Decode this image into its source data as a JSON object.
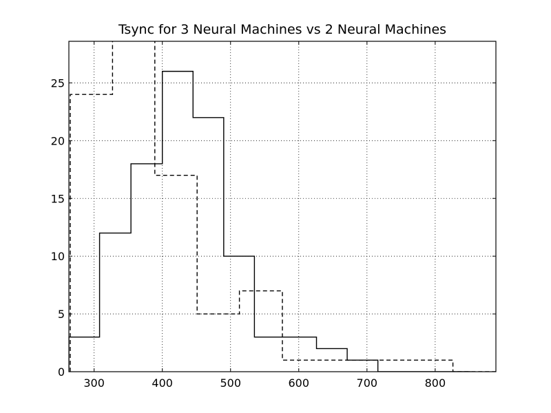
{
  "chart_data": {
    "type": "histogram-step",
    "title": "Tsync for 3 Neural Machines vs 2 Neural Machines",
    "xlabel": "",
    "ylabel": "",
    "xlim": [
      263,
      889
    ],
    "ylim": [
      0,
      28.6
    ],
    "xticks": [
      300,
      400,
      500,
      600,
      700,
      800
    ],
    "yticks": [
      0,
      5,
      10,
      15,
      20,
      25
    ],
    "grid": true,
    "grid_style": "dotted",
    "series": [
      {
        "line_style": "solid",
        "color": "#000000",
        "bin_edges": [
          263,
          308,
          354,
          400,
          445,
          490,
          535,
          580,
          626,
          671,
          716,
          762,
          807,
          852
        ],
        "counts": [
          3,
          12,
          18,
          26,
          22,
          10,
          3,
          3,
          2,
          1,
          0,
          0,
          0
        ]
      },
      {
        "line_style": "dashed",
        "color": "#000000",
        "bin_edges": [
          265,
          327,
          389,
          451,
          513,
          576,
          638,
          700,
          763,
          826,
          889
        ],
        "counts": [
          24,
          31,
          17,
          5,
          7,
          1,
          1,
          1,
          1,
          0
        ]
      }
    ]
  }
}
